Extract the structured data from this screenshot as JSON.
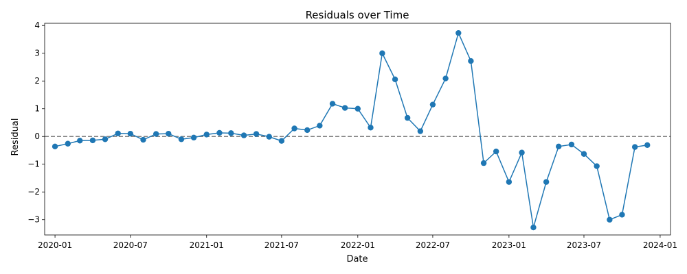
{
  "chart_data": {
    "type": "line",
    "title": "Residuals over Time",
    "xlabel": "Date",
    "ylabel": "Residual",
    "xlim": [
      "2019-12-07",
      "2024-01-26"
    ],
    "ylim": [
      -3.55,
      4.08
    ],
    "x_ticks": [
      "2020-01",
      "2020-07",
      "2021-01",
      "2021-07",
      "2022-01",
      "2022-07",
      "2023-01",
      "2023-07",
      "2024-01"
    ],
    "y_ticks": [
      -3,
      -2,
      -1,
      0,
      1,
      2,
      3,
      4
    ],
    "grid": false,
    "legend": "none",
    "reference_line": {
      "y": 0,
      "style": "dashed",
      "color": "#808080"
    },
    "series": [
      {
        "color": "#1f77b4",
        "marker": "circle",
        "x": [
          "2020-01-01",
          "2020-02-01",
          "2020-03-01",
          "2020-04-01",
          "2020-05-01",
          "2020-06-01",
          "2020-07-01",
          "2020-08-01",
          "2020-09-01",
          "2020-10-01",
          "2020-11-01",
          "2020-12-01",
          "2021-01-01",
          "2021-02-01",
          "2021-03-01",
          "2021-04-01",
          "2021-05-01",
          "2021-06-01",
          "2021-07-01",
          "2021-08-01",
          "2021-09-01",
          "2021-10-01",
          "2021-11-01",
          "2021-12-01",
          "2022-01-01",
          "2022-02-01",
          "2022-03-01",
          "2022-04-01",
          "2022-05-01",
          "2022-06-01",
          "2022-07-01",
          "2022-08-01",
          "2022-09-01",
          "2022-10-01",
          "2022-11-01",
          "2022-12-01",
          "2023-01-01",
          "2023-02-01",
          "2023-03-01",
          "2023-04-01",
          "2023-05-01",
          "2023-06-01",
          "2023-07-01",
          "2023-08-01",
          "2023-09-01",
          "2023-10-01",
          "2023-11-01",
          "2023-12-01"
        ],
        "y": [
          -0.36,
          -0.26,
          -0.15,
          -0.14,
          -0.1,
          0.11,
          0.1,
          -0.12,
          0.09,
          0.1,
          -0.1,
          -0.04,
          0.07,
          0.13,
          0.12,
          0.04,
          0.09,
          -0.01,
          -0.16,
          0.29,
          0.23,
          0.39,
          1.18,
          1.03,
          1.0,
          0.32,
          3.0,
          2.06,
          0.67,
          0.19,
          1.15,
          2.09,
          3.73,
          2.72,
          -0.96,
          -0.54,
          -1.64,
          -0.58,
          -3.28,
          -1.64,
          -0.36,
          -0.29,
          -0.63,
          -1.07,
          -3.0,
          -2.82,
          -0.38,
          -0.31
        ]
      }
    ]
  }
}
